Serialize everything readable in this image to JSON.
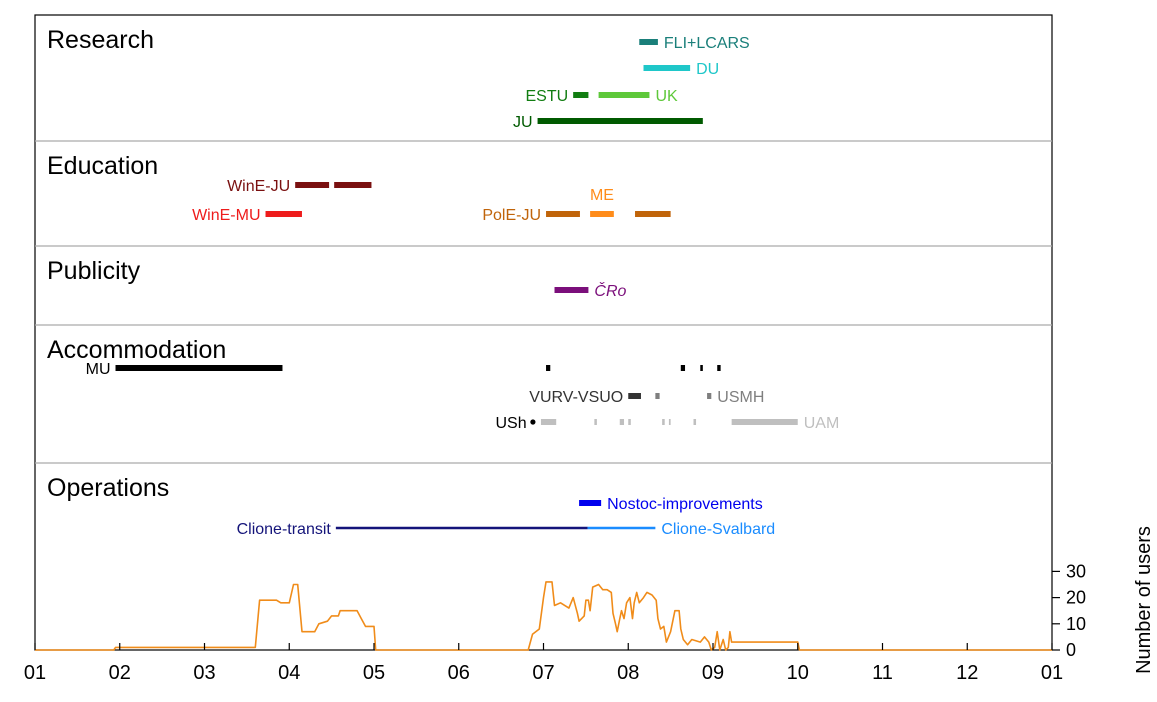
{
  "chart_data": {
    "type": "timeline",
    "x_axis": {
      "tick_labels": [
        "01",
        "02",
        "03",
        "04",
        "05",
        "06",
        "07",
        "08",
        "09",
        "10",
        "11",
        "12",
        "01"
      ],
      "range_months": [
        0,
        12
      ]
    },
    "panels": [
      {
        "title": "Research",
        "bars": [
          {
            "label": "FLI+LCARS",
            "label_side": "right",
            "color": "#1a7f7a",
            "row": 0,
            "segments": [
              [
                7.13,
                7.35
              ]
            ]
          },
          {
            "label": "DU",
            "label_side": "right",
            "color": "#1fc7c9",
            "row": 1,
            "segments": [
              [
                7.18,
                7.73
              ]
            ]
          },
          {
            "label": "ESTU",
            "label_side": "left",
            "color": "#117d11",
            "row": 2,
            "segments": [
              [
                6.35,
                6.53
              ]
            ]
          },
          {
            "label": "UK",
            "label_side": "right",
            "color": "#5ec83a",
            "row": 2,
            "segments": [
              [
                6.65,
                7.25
              ]
            ]
          },
          {
            "label": "JU",
            "label_side": "left",
            "color": "#005a00",
            "row": 3,
            "segments": [
              [
                5.93,
                7.88
              ]
            ]
          }
        ]
      },
      {
        "title": "Education",
        "bars": [
          {
            "label": "WinE-JU",
            "label_side": "left",
            "color": "#7a1010",
            "row": 0,
            "segments": [
              [
                3.07,
                3.47
              ],
              [
                3.53,
                3.97
              ]
            ]
          },
          {
            "label": "WinE-MU",
            "label_side": "left",
            "color": "#ee1c1c",
            "row": 1,
            "segments": [
              [
                2.72,
                3.15
              ]
            ]
          },
          {
            "label": "PolE-JU",
            "label_side": "left",
            "color": "#c0640a",
            "row": 1,
            "segments": [
              [
                6.03,
                6.43
              ],
              [
                7.08,
                7.5
              ]
            ]
          },
          {
            "label": "ME",
            "label_side": "above",
            "color": "#ff8c1a",
            "row": 1,
            "segments": [
              [
                6.55,
                6.83
              ]
            ]
          }
        ]
      },
      {
        "title": "Publicity",
        "bars": [
          {
            "label": "ČRo",
            "label_side": "right",
            "color": "#7b0f7b",
            "row": 0,
            "italic": true,
            "segments": [
              [
                6.13,
                6.53
              ]
            ]
          }
        ]
      },
      {
        "title": "Accommodation",
        "bars": [
          {
            "label": "MU",
            "label_side": "left",
            "color": "#000000",
            "row": 0,
            "segments": [
              [
                0.95,
                2.92
              ],
              [
                6.03,
                6.08
              ],
              [
                7.62,
                7.67
              ],
              [
                7.85,
                7.88
              ],
              [
                8.05,
                8.09
              ]
            ]
          },
          {
            "label": "VURV-VSUO",
            "label_side": "left",
            "color": "#333333",
            "row": 1,
            "segments": [
              [
                7.0,
                7.15
              ]
            ]
          },
          {
            "label": "",
            "label_side": "none",
            "color": "#7f7f7f",
            "row": 1,
            "segments": [
              [
                7.32,
                7.37
              ]
            ]
          },
          {
            "label": "USMH",
            "label_side": "right",
            "color": "#7f7f7f",
            "row": 1,
            "segments": [
              [
                7.93,
                7.98
              ]
            ]
          },
          {
            "label": "USh",
            "label_side": "left",
            "color": "#000000",
            "row": 2,
            "dot": true,
            "segments": [
              [
                5.86,
                5.89
              ]
            ]
          },
          {
            "label": "UAM",
            "label_side": "right",
            "color": "#bfbfbf",
            "row": 2,
            "segments": [
              [
                5.97,
                6.15
              ],
              [
                6.6,
                6.63
              ],
              [
                6.9,
                6.95
              ],
              [
                7.0,
                7.03
              ],
              [
                7.4,
                7.43
              ],
              [
                7.48,
                7.5
              ],
              [
                7.77,
                7.8
              ],
              [
                8.22,
                9.0
              ]
            ]
          }
        ]
      },
      {
        "title": "Operations",
        "bars": [
          {
            "label": "Nostoc-improvements",
            "label_side": "right",
            "color": "#0000ee",
            "row": 0,
            "segments": [
              [
                6.42,
                6.68
              ]
            ]
          },
          {
            "label": "Clione-transit",
            "label_side": "left",
            "color": "#14147a",
            "row": 1,
            "thin": true,
            "segments": [
              [
                3.55,
                6.52
              ]
            ]
          },
          {
            "label": "Clione-Svalbard",
            "label_side": "right",
            "color": "#1a8cff",
            "row": 1,
            "thin": true,
            "segments": [
              [
                6.52,
                7.32
              ]
            ]
          }
        ]
      }
    ],
    "users_series": {
      "ylabel": "Number of users",
      "yticks": [
        0,
        10,
        20,
        30
      ],
      "ylim": [
        0,
        33
      ],
      "color": "#f08c1a",
      "points": [
        [
          0,
          0
        ],
        [
          0.93,
          0
        ],
        [
          0.95,
          1
        ],
        [
          2.6,
          1
        ],
        [
          2.65,
          19
        ],
        [
          2.85,
          19
        ],
        [
          2.9,
          18
        ],
        [
          3.0,
          18
        ],
        [
          3.05,
          25
        ],
        [
          3.1,
          25
        ],
        [
          3.15,
          7
        ],
        [
          3.3,
          7
        ],
        [
          3.35,
          10
        ],
        [
          3.45,
          11
        ],
        [
          3.5,
          13
        ],
        [
          3.58,
          13
        ],
        [
          3.6,
          15
        ],
        [
          3.8,
          15
        ],
        [
          3.85,
          12
        ],
        [
          3.9,
          9
        ],
        [
          3.95,
          9
        ],
        [
          4.0,
          9
        ],
        [
          4.02,
          0
        ],
        [
          5.82,
          0
        ],
        [
          5.87,
          6
        ],
        [
          5.95,
          8
        ],
        [
          6.0,
          20
        ],
        [
          6.03,
          26
        ],
        [
          6.1,
          26
        ],
        [
          6.13,
          17
        ],
        [
          6.2,
          18
        ],
        [
          6.3,
          16
        ],
        [
          6.35,
          20
        ],
        [
          6.4,
          14
        ],
        [
          6.42,
          11
        ],
        [
          6.48,
          13
        ],
        [
          6.5,
          19
        ],
        [
          6.53,
          19
        ],
        [
          6.55,
          15
        ],
        [
          6.58,
          24
        ],
        [
          6.65,
          25
        ],
        [
          6.7,
          23
        ],
        [
          6.75,
          23
        ],
        [
          6.8,
          22
        ],
        [
          6.82,
          14
        ],
        [
          6.85,
          10
        ],
        [
          6.87,
          7
        ],
        [
          6.9,
          12
        ],
        [
          6.92,
          15
        ],
        [
          6.95,
          12
        ],
        [
          6.98,
          18
        ],
        [
          7.02,
          20
        ],
        [
          7.05,
          12
        ],
        [
          7.07,
          18
        ],
        [
          7.1,
          22
        ],
        [
          7.13,
          18
        ],
        [
          7.18,
          20
        ],
        [
          7.22,
          22
        ],
        [
          7.28,
          21
        ],
        [
          7.33,
          19
        ],
        [
          7.35,
          12
        ],
        [
          7.38,
          8
        ],
        [
          7.42,
          9
        ],
        [
          7.45,
          3
        ],
        [
          7.5,
          7
        ],
        [
          7.55,
          15
        ],
        [
          7.6,
          15
        ],
        [
          7.62,
          8
        ],
        [
          7.65,
          4
        ],
        [
          7.7,
          2
        ],
        [
          7.75,
          4
        ],
        [
          7.85,
          3
        ],
        [
          7.9,
          5
        ],
        [
          7.95,
          3
        ],
        [
          7.98,
          0
        ],
        [
          8.02,
          1
        ],
        [
          8.05,
          7
        ],
        [
          8.08,
          0
        ],
        [
          8.12,
          4
        ],
        [
          8.15,
          0
        ],
        [
          8.18,
          1
        ],
        [
          8.2,
          7
        ],
        [
          8.22,
          3
        ],
        [
          9.0,
          3
        ],
        [
          9.02,
          0
        ],
        [
          12.0,
          0
        ]
      ]
    }
  }
}
